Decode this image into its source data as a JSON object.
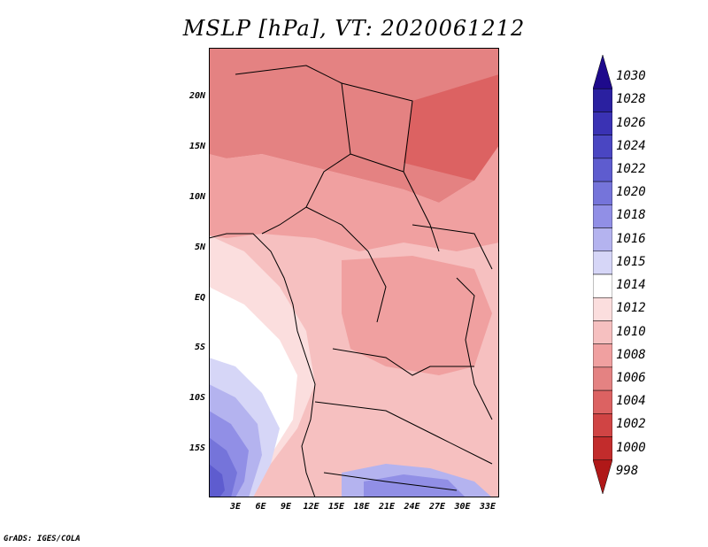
{
  "title": "MSLP [hPa], VT: 2020061212",
  "credit": "GrADS: IGES/COLA",
  "lat_labels": [
    "20N",
    "15N",
    "10N",
    "5N",
    "EQ",
    "5S",
    "10S",
    "15S"
  ],
  "lon_labels": [
    "3E",
    "6E",
    "9E",
    "12E",
    "15E",
    "18E",
    "21E",
    "24E",
    "27E",
    "30E",
    "33E"
  ],
  "colorbar": {
    "labels": [
      "1030",
      "1028",
      "1026",
      "1024",
      "1022",
      "1020",
      "1018",
      "1016",
      "1015",
      "1014",
      "1012",
      "1010",
      "1008",
      "1006",
      "1004",
      "1002",
      "1000",
      "998"
    ],
    "colors": [
      "#1e0a8c",
      "#2a20a0",
      "#3a32b4",
      "#4a46c2",
      "#5e5ccf",
      "#7574da",
      "#918fe6",
      "#b4b3ef",
      "#d6d6f7",
      "#ffffff",
      "#fbdede",
      "#f6c0c0",
      "#f0a0a0",
      "#e48282",
      "#dc6262",
      "#d04444",
      "#c22c2c",
      "#b01818"
    ]
  },
  "map": {
    "regions": [
      {
        "name": "north-sahara",
        "color": "#e48282"
      },
      {
        "name": "ne-low",
        "color": "#dc6262"
      },
      {
        "name": "sahel",
        "color": "#f0a0a0"
      },
      {
        "name": "central",
        "color": "#f6c0c0"
      },
      {
        "name": "congo-basin",
        "color": "#f0a0a0"
      },
      {
        "name": "coast",
        "color": "#fbdede"
      },
      {
        "name": "ocean-high",
        "color": "#d6d6f7"
      }
    ]
  }
}
